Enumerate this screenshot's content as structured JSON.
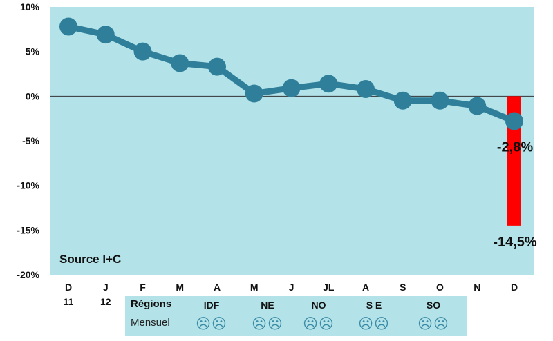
{
  "chart_data": {
    "type": "line",
    "categories": [
      "D\n11",
      "J\n12",
      "F",
      "M",
      "A",
      "M",
      "J",
      "JL",
      "A",
      "S",
      "O",
      "N",
      "D"
    ],
    "values": [
      7.8,
      6.9,
      5.0,
      3.7,
      3.3,
      0.3,
      0.9,
      1.4,
      0.8,
      -0.5,
      -0.5,
      -1.1,
      -2.8
    ],
    "bar": {
      "category_index": 12,
      "value": -14.5,
      "label": "-14,5%",
      "color": "#ff0000"
    },
    "last_point_label": "-2,8%",
    "ylim": [
      -20,
      10
    ],
    "yticks": [
      "10%",
      "5%",
      "0%",
      "-5%",
      "-10%",
      "-15%",
      "-20%"
    ],
    "ytick_values": [
      10,
      5,
      0,
      -5,
      -10,
      -15,
      -20
    ],
    "line_color": "#2f7f9a",
    "plot_bg": "#b3e3e8",
    "annotation": "Source I+C"
  },
  "regions_table": {
    "row1_label": "Régions",
    "row2_label": "Mensuel",
    "regions": [
      "IDF",
      "NE",
      "NO",
      "S E",
      "SO"
    ],
    "faces": [
      "☹☹",
      "☹☹",
      "☹☹",
      "☹☹",
      "☹☹"
    ]
  }
}
